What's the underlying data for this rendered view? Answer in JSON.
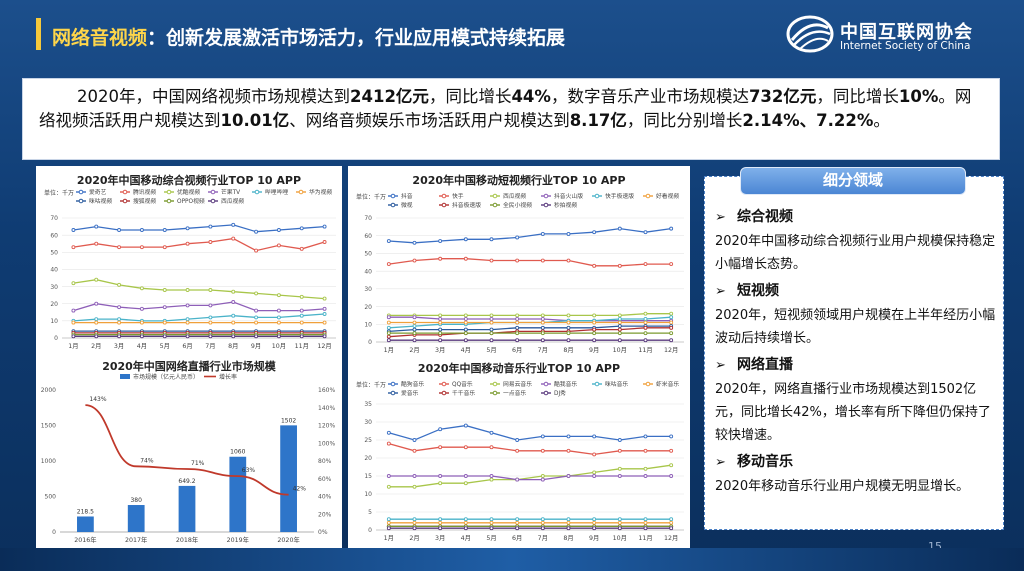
{
  "title": {
    "highlight": "网络音视频",
    "rest": "：创新发展激活市场活力，行业应用模式持续拓展"
  },
  "logo": {
    "cn": "中国互联网协会",
    "en": "Internet Society of China"
  },
  "summary": {
    "p1": "2020年，中国网络视频市场规模达到",
    "b1": "2412亿元",
    "p2": "，同比增长",
    "b2": "44%",
    "p3": "，数字音乐产业市场规模达",
    "b3": "732亿元",
    "p4": "，同比增长",
    "b4": "10%",
    "p5": "。网络视频活跃用户规模达到",
    "b5": "10.01亿",
    "p6": "、网络音频娱乐市场活跃用户规模达到",
    "b6": "8.17亿",
    "p7": "，同比分别增长",
    "b7": "2.14%、7.22%",
    "p8": "。"
  },
  "segments": {
    "header": "细分领域",
    "items": [
      {
        "title": "综合视频",
        "body": "2020年中国移动综合视频行业用户规模保持稳定小幅增长态势。"
      },
      {
        "title": "短视频",
        "body": "2020年，短视频领域用户规模在上半年经历小幅波动后持续增长。"
      },
      {
        "title": "网络直播",
        "body": "2020年，网络直播行业市场规模达到1502亿元，同比增长42%，增长率有所下降但仍保持了较快增速。"
      },
      {
        "title": "移动音乐",
        "body": "2020年移动音乐行业用户规模无明显增长。"
      }
    ]
  },
  "page_number": "15",
  "colors": {
    "accent": "#f6c93b",
    "panel_border": "#4a7fc4",
    "bar": "#2e75c9",
    "rate_line": "#c0392b"
  },
  "chart_data": [
    {
      "id": "video",
      "type": "line",
      "title": "2020年中国移动综合视频行业TOP 10 APP",
      "unit_label": "单位：千万",
      "x": [
        "1月",
        "2月",
        "3月",
        "4月",
        "5月",
        "6月",
        "7月",
        "8月",
        "9月",
        "10月",
        "11月",
        "12月"
      ],
      "ylim": [
        0,
        70
      ],
      "yticks": [
        0,
        10,
        20,
        30,
        40,
        50,
        60,
        70
      ],
      "series": [
        {
          "name": "爱奇艺",
          "color": "#3a6fc4",
          "values": [
            63,
            65,
            63,
            63,
            63,
            64,
            65,
            66,
            62,
            63,
            64,
            65
          ]
        },
        {
          "name": "腾讯视频",
          "color": "#e05a4f",
          "values": [
            53,
            55,
            53,
            53,
            53,
            55,
            56,
            58,
            51,
            54,
            52,
            56
          ]
        },
        {
          "name": "优酷视频",
          "color": "#a8c64a",
          "values": [
            32,
            34,
            31,
            29,
            28,
            28,
            28,
            27,
            26,
            25,
            24,
            23
          ]
        },
        {
          "name": "芒果TV",
          "color": "#8e5fb8",
          "values": [
            16,
            20,
            18,
            17,
            18,
            19,
            19,
            21,
            16,
            16,
            16,
            17
          ]
        },
        {
          "name": "哔哩哔哩",
          "color": "#4ab3c9",
          "values": [
            10,
            11,
            11,
            10,
            10,
            11,
            12,
            13,
            12,
            12,
            13,
            14
          ]
        },
        {
          "name": "华为视频",
          "color": "#f0a03a",
          "values": [
            9,
            9,
            9,
            9,
            9,
            9,
            9,
            9,
            9,
            9,
            9,
            9
          ]
        },
        {
          "name": "咪咕视频",
          "color": "#2a5a9e",
          "values": [
            4,
            4,
            4,
            4,
            4,
            4,
            4,
            4,
            4,
            4,
            4,
            4
          ]
        },
        {
          "name": "搜狐视频",
          "color": "#b03030",
          "values": [
            3,
            3,
            3,
            3,
            3,
            3,
            3,
            3,
            3,
            3,
            3,
            3
          ]
        },
        {
          "name": "OPPO视频",
          "color": "#7a9a2e",
          "values": [
            2,
            2,
            2,
            2,
            2,
            2,
            2,
            2,
            2,
            2,
            2,
            2
          ]
        },
        {
          "name": "西瓜视频",
          "color": "#5a3a7e",
          "values": [
            1,
            1,
            1,
            1,
            1,
            1,
            1,
            1,
            1,
            1,
            1,
            1
          ]
        }
      ]
    },
    {
      "id": "live",
      "type": "bar",
      "title": "2020年中国网络直播行业市场规模",
      "categories": [
        "2016年",
        "2017年",
        "2018年",
        "2019年",
        "2020年"
      ],
      "ylim": [
        0,
        2000
      ],
      "yticks": [
        0,
        500,
        1000,
        1500,
        2000
      ],
      "y2lim": [
        0,
        160
      ],
      "y2ticks": [
        "0%",
        "20%",
        "40%",
        "60%",
        "80%",
        "100%",
        "120%",
        "140%",
        "160%"
      ],
      "series": [
        {
          "name": "市场规模（亿元人民币）",
          "values": [
            218.5,
            380,
            649.2,
            1060,
            1502
          ]
        },
        {
          "name": "增长率",
          "values": [
            143,
            74,
            71,
            63,
            42
          ]
        }
      ],
      "bar_labels": [
        "218.5",
        "380",
        "649.2",
        "1060",
        "1502"
      ],
      "rate_labels": [
        "143%",
        "74%",
        "71%",
        "63%",
        "42%"
      ]
    },
    {
      "id": "short",
      "type": "line",
      "title": "2020年中国移动短视频行业TOP 10 APP",
      "unit_label": "单位：千万",
      "x": [
        "1月",
        "2月",
        "3月",
        "4月",
        "5月",
        "6月",
        "7月",
        "8月",
        "9月",
        "10月",
        "11月",
        "12月"
      ],
      "ylim": [
        0,
        70
      ],
      "yticks": [
        0,
        10,
        20,
        30,
        40,
        50,
        60,
        70
      ],
      "series": [
        {
          "name": "抖音",
          "color": "#3a6fc4",
          "values": [
            57,
            56,
            57,
            58,
            58,
            59,
            61,
            61,
            62,
            64,
            62,
            64
          ]
        },
        {
          "name": "快手",
          "color": "#e05a4f",
          "values": [
            44,
            46,
            47,
            47,
            46,
            46,
            46,
            46,
            43,
            43,
            44,
            44
          ]
        },
        {
          "name": "西瓜视频",
          "color": "#a8c64a",
          "values": [
            15,
            15,
            15,
            15,
            15,
            15,
            15,
            15,
            15,
            15,
            16,
            16
          ]
        },
        {
          "name": "抖音火山版",
          "color": "#8e5fb8",
          "values": [
            14,
            14,
            13,
            13,
            13,
            13,
            13,
            12,
            12,
            12,
            12,
            12
          ]
        },
        {
          "name": "快手极速版",
          "color": "#4ab3c9",
          "values": [
            8,
            9,
            10,
            10,
            11,
            11,
            11,
            12,
            12,
            13,
            13,
            14
          ]
        },
        {
          "name": "好看视频",
          "color": "#f0a03a",
          "values": [
            11,
            11,
            11,
            11,
            11,
            11,
            11,
            11,
            11,
            11,
            11,
            11
          ]
        },
        {
          "name": "微视",
          "color": "#2a5a9e",
          "values": [
            6,
            7,
            7,
            7,
            7,
            8,
            8,
            8,
            8,
            9,
            9,
            9
          ]
        },
        {
          "name": "抖音极速版",
          "color": "#b03030",
          "values": [
            3,
            4,
            4,
            5,
            5,
            6,
            6,
            6,
            7,
            7,
            8,
            8
          ]
        },
        {
          "name": "全民小视频",
          "color": "#7a9a2e",
          "values": [
            5,
            5,
            5,
            5,
            5,
            5,
            5,
            5,
            5,
            5,
            5,
            5
          ]
        },
        {
          "name": "秒拍视频",
          "color": "#5a3a7e",
          "values": [
            1,
            1,
            1,
            1,
            1,
            1,
            1,
            1,
            1,
            1,
            1,
            1
          ]
        }
      ]
    },
    {
      "id": "music",
      "type": "line",
      "title": "2020年中国移动音乐行业TOP 10 APP",
      "unit_label": "单位：千万",
      "x": [
        "1月",
        "2月",
        "3月",
        "4月",
        "5月",
        "6月",
        "7月",
        "8月",
        "9月",
        "10月",
        "11月",
        "12月"
      ],
      "ylim": [
        0,
        35
      ],
      "yticks": [
        0,
        5,
        10,
        15,
        20,
        25,
        30,
        35
      ],
      "series": [
        {
          "name": "酷狗音乐",
          "color": "#3a6fc4",
          "values": [
            27,
            25,
            28,
            29,
            27,
            25,
            26,
            26,
            26,
            25,
            26,
            26
          ]
        },
        {
          "name": "QQ音乐",
          "color": "#e05a4f",
          "values": [
            24,
            22,
            23,
            23,
            23,
            22,
            22,
            22,
            21,
            22,
            22,
            22
          ]
        },
        {
          "name": "网易云音乐",
          "color": "#a8c64a",
          "values": [
            12,
            12,
            13,
            13,
            14,
            14,
            15,
            15,
            16,
            17,
            17,
            18
          ]
        },
        {
          "name": "酷我音乐",
          "color": "#8e5fb8",
          "values": [
            15,
            15,
            15,
            15,
            15,
            14,
            14,
            15,
            15,
            15,
            15,
            15
          ]
        },
        {
          "name": "咪咕音乐",
          "color": "#4ab3c9",
          "values": [
            3,
            3,
            3,
            3,
            3,
            3,
            3,
            3,
            3,
            3,
            3,
            3
          ]
        },
        {
          "name": "虾米音乐",
          "color": "#f0a03a",
          "values": [
            2,
            2,
            2,
            2,
            2,
            2,
            2,
            2,
            2,
            2,
            2,
            2
          ]
        },
        {
          "name": "爱音乐",
          "color": "#2a5a9e",
          "values": [
            1,
            1,
            1,
            1,
            1,
            1,
            1,
            1,
            1,
            1,
            1,
            1
          ]
        },
        {
          "name": "千千音乐",
          "color": "#b03030",
          "values": [
            1,
            1,
            1,
            1,
            1,
            1,
            1,
            1,
            1,
            1,
            1,
            1
          ]
        },
        {
          "name": "一点音乐",
          "color": "#7a9a2e",
          "values": [
            1,
            1,
            1,
            1,
            1,
            1,
            1,
            1,
            1,
            1,
            1,
            1
          ]
        },
        {
          "name": "DJ秀",
          "color": "#5a3a7e",
          "values": [
            0.5,
            0.5,
            0.5,
            0.5,
            0.5,
            0.5,
            0.5,
            0.5,
            0.5,
            0.5,
            0.5,
            0.5
          ]
        }
      ]
    }
  ]
}
